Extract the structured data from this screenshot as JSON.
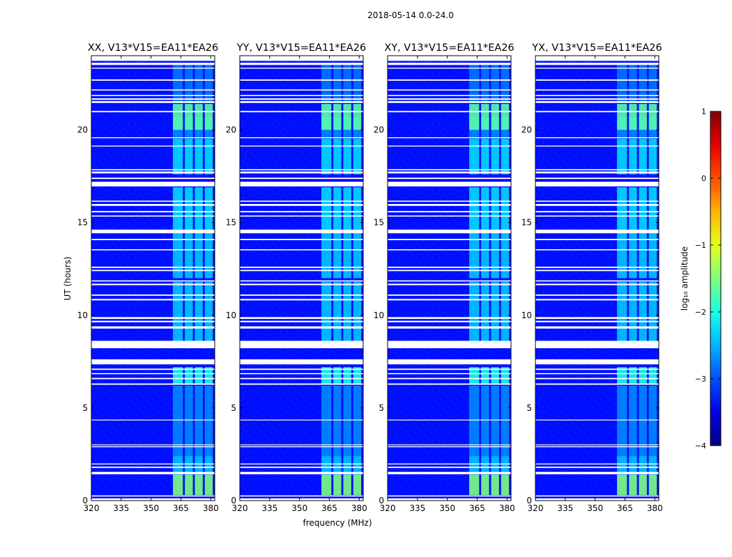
{
  "chart_data": {
    "type": "heatmap",
    "suptitle": "2018-05-14 0.0-24.0",
    "xlabel": "frequency (MHz)",
    "ylabel": "UT (hours)",
    "xlim": [
      320,
      382
    ],
    "ylim": [
      0,
      24
    ],
    "x_ticks": [
      320,
      335,
      350,
      365,
      380
    ],
    "y_ticks": [
      0,
      5,
      10,
      15,
      20
    ],
    "panels": [
      {
        "title": "XX, V13*V15=EA11*EA26"
      },
      {
        "title": "YY, V13*V15=EA11*EA26"
      },
      {
        "title": "XY, V13*V15=EA11*EA26"
      },
      {
        "title": "YX, V13*V15=EA11*EA26"
      }
    ],
    "colorbar": {
      "label": "log₁₀ amplitude",
      "range": [
        -4,
        1
      ],
      "ticks": [
        1,
        0,
        -1,
        -2,
        -3,
        -4
      ],
      "tick_labels": [
        "1",
        "0",
        "−1",
        "−2",
        "−3",
        "−4"
      ],
      "colormap": "jet"
    },
    "background_log_amplitude": -3.3,
    "rfi_bands_mhz": [
      [
        361,
        366
      ],
      [
        367,
        371
      ],
      [
        372,
        376
      ],
      [
        377,
        381
      ]
    ],
    "rfi_levels": [
      {
        "t0": 0.3,
        "t1": 1.4,
        "level": -1.5
      },
      {
        "t0": 1.4,
        "t1": 2.4,
        "level": -2.4
      },
      {
        "t0": 2.4,
        "t1": 6.2,
        "level": -2.7
      },
      {
        "t0": 6.3,
        "t1": 7.2,
        "level": -2.0
      },
      {
        "t0": 8.6,
        "t1": 11.8,
        "level": -2.4
      },
      {
        "t0": 12.0,
        "t1": 14.4,
        "level": -2.4
      },
      {
        "t0": 14.4,
        "t1": 16.9,
        "level": -2.3
      },
      {
        "t0": 17.6,
        "t1": 19.5,
        "level": -2.3
      },
      {
        "t0": 19.5,
        "t1": 20.7,
        "level": -2.7
      },
      {
        "t0": 20.0,
        "t1": 21.4,
        "level": -1.7
      },
      {
        "t0": 21.5,
        "t1": 23.6,
        "level": -2.8
      }
    ],
    "flagged_time_ranges_hours": [
      [
        0.0,
        0.12
      ],
      [
        0.22,
        0.28
      ],
      [
        1.42,
        1.55
      ],
      [
        1.76,
        1.83
      ],
      [
        1.95,
        2.0
      ],
      [
        2.88,
        2.93
      ],
      [
        2.99,
        3.03
      ],
      [
        4.33,
        4.37
      ],
      [
        6.25,
        6.32
      ],
      [
        6.55,
        6.62
      ],
      [
        6.82,
        6.88
      ],
      [
        7.05,
        7.12
      ],
      [
        7.35,
        7.62
      ],
      [
        8.22,
        8.62
      ],
      [
        9.28,
        9.4
      ],
      [
        9.62,
        9.7
      ],
      [
        9.8,
        9.9
      ],
      [
        10.8,
        10.88
      ],
      [
        11.05,
        11.12
      ],
      [
        11.62,
        11.7
      ],
      [
        11.82,
        11.88
      ],
      [
        12.38,
        12.45
      ],
      [
        12.55,
        12.62
      ],
      [
        13.5,
        13.56
      ],
      [
        14.05,
        14.12
      ],
      [
        14.42,
        14.62
      ],
      [
        15.32,
        15.38
      ],
      [
        15.55,
        15.62
      ],
      [
        15.9,
        16.0
      ],
      [
        16.12,
        16.18
      ],
      [
        16.95,
        17.2
      ],
      [
        17.35,
        17.42
      ],
      [
        17.65,
        17.75
      ],
      [
        17.82,
        17.88
      ],
      [
        19.1,
        19.15
      ],
      [
        19.55,
        19.6
      ],
      [
        20.95,
        21.02
      ],
      [
        21.45,
        21.55
      ],
      [
        21.62,
        21.7
      ],
      [
        21.82,
        21.88
      ],
      [
        22.12,
        22.18
      ],
      [
        22.65,
        22.72
      ],
      [
        23.3,
        23.35
      ],
      [
        23.5,
        23.62
      ],
      [
        23.72,
        24.0
      ]
    ]
  }
}
